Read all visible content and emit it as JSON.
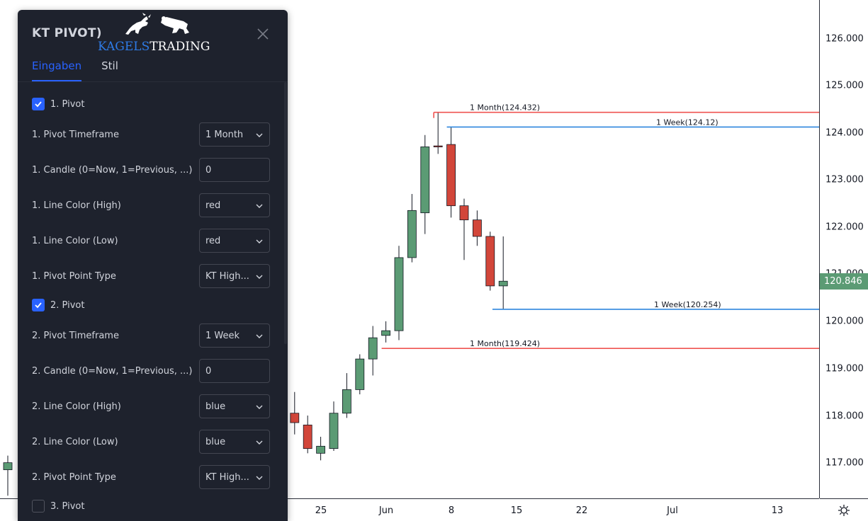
{
  "dialog": {
    "title": "KT PIVOT)",
    "logo": {
      "brand_part1": "KAGELS",
      "brand_part2": "TRADING"
    },
    "tabs": [
      {
        "label": "Eingaben"
      },
      {
        "label": "Stil"
      }
    ],
    "pivots": [
      {
        "header": "1. Pivot",
        "enabled": true,
        "rows": [
          {
            "label": "1. Pivot Timeframe",
            "kind": "select",
            "value": "1 Month"
          },
          {
            "label": "1. Candle (0=Now, 1=Previous, ...)",
            "kind": "input",
            "value": "0"
          },
          {
            "label": "1. Line Color (High)",
            "kind": "select",
            "value": "red"
          },
          {
            "label": "1. Line Color (Low)",
            "kind": "select",
            "value": "red"
          },
          {
            "label": "1. Pivot Point Type",
            "kind": "select",
            "value": "KT High..."
          }
        ]
      },
      {
        "header": "2. Pivot",
        "enabled": true,
        "rows": [
          {
            "label": "2. Pivot Timeframe",
            "kind": "select",
            "value": "1 Week"
          },
          {
            "label": "2. Candle (0=Now, 1=Previous, ...)",
            "kind": "input",
            "value": "0"
          },
          {
            "label": "2. Line Color (High)",
            "kind": "select",
            "value": "blue"
          },
          {
            "label": "2. Line Color (Low)",
            "kind": "select",
            "value": "blue"
          },
          {
            "label": "2. Pivot Point Type",
            "kind": "select",
            "value": "KT High..."
          }
        ]
      },
      {
        "header": "3. Pivot",
        "enabled": false,
        "rows": []
      }
    ]
  },
  "price_axis": {
    "labels": [
      "126.000",
      "125.000",
      "124.000",
      "123.000",
      "122.000",
      "121.000",
      "120.000",
      "119.000",
      "118.000",
      "117.000"
    ],
    "current_price": "120.846"
  },
  "time_axis": {
    "labels": [
      "25",
      "Jun",
      "8",
      "15",
      "22",
      "Jul",
      "13"
    ]
  },
  "colors": {
    "up": "#5b9b74",
    "down": "#d2463a",
    "pivot_red": "#ef5350",
    "pivot_blue": "#2e86de"
  },
  "chart_data": {
    "type": "candlestick",
    "y_range": [
      116.3,
      126.6
    ],
    "x_tick_slots": [
      24,
      29,
      34,
      39,
      44,
      49,
      56
    ],
    "candles": [
      {
        "slot": 0,
        "o": 116.85,
        "h": 117.15,
        "l": 116.3,
        "c": 117.0
      },
      {
        "slot": 22,
        "o": 118.05,
        "h": 118.5,
        "l": 117.6,
        "c": 117.85
      },
      {
        "slot": 23,
        "o": 117.8,
        "h": 118.0,
        "l": 117.2,
        "c": 117.3
      },
      {
        "slot": 24,
        "o": 117.2,
        "h": 117.55,
        "l": 117.05,
        "c": 117.35
      },
      {
        "slot": 25,
        "o": 117.3,
        "h": 118.3,
        "l": 117.25,
        "c": 118.05
      },
      {
        "slot": 26,
        "o": 118.05,
        "h": 118.9,
        "l": 117.95,
        "c": 118.55
      },
      {
        "slot": 27,
        "o": 118.55,
        "h": 119.3,
        "l": 118.45,
        "c": 119.2
      },
      {
        "slot": 28,
        "o": 119.2,
        "h": 119.9,
        "l": 118.85,
        "c": 119.65
      },
      {
        "slot": 29,
        "o": 119.7,
        "h": 120.0,
        "l": 119.55,
        "c": 119.8
      },
      {
        "slot": 30,
        "o": 119.8,
        "h": 121.6,
        "l": 119.6,
        "c": 121.35
      },
      {
        "slot": 31,
        "o": 121.35,
        "h": 122.7,
        "l": 121.25,
        "c": 122.35
      },
      {
        "slot": 32,
        "o": 122.3,
        "h": 123.95,
        "l": 121.85,
        "c": 123.7
      },
      {
        "slot": 33,
        "o": 123.72,
        "h": 124.43,
        "l": 123.55,
        "c": 123.7
      },
      {
        "slot": 34,
        "o": 123.75,
        "h": 124.12,
        "l": 122.2,
        "c": 122.45
      },
      {
        "slot": 35,
        "o": 122.45,
        "h": 122.6,
        "l": 121.3,
        "c": 122.15
      },
      {
        "slot": 36,
        "o": 122.15,
        "h": 122.35,
        "l": 121.6,
        "c": 121.8
      },
      {
        "slot": 37,
        "o": 121.8,
        "h": 121.9,
        "l": 120.65,
        "c": 120.75
      },
      {
        "slot": 38,
        "o": 120.75,
        "h": 121.8,
        "l": 120.25,
        "c": 120.85
      }
    ],
    "pivot_lines": [
      {
        "label": "1 Month(124.432)",
        "value": 124.432,
        "color": "red",
        "from_slot": 33
      },
      {
        "label": "1 Week(124.12)",
        "value": 124.12,
        "color": "blue",
        "from_slot": 34
      },
      {
        "label": "1 Week(120.254)",
        "value": 120.254,
        "color": "blue",
        "from_slot": 37.5
      },
      {
        "label": "1 Month(119.424)",
        "value": 119.424,
        "color": "red",
        "from_slot": 29
      }
    ]
  }
}
